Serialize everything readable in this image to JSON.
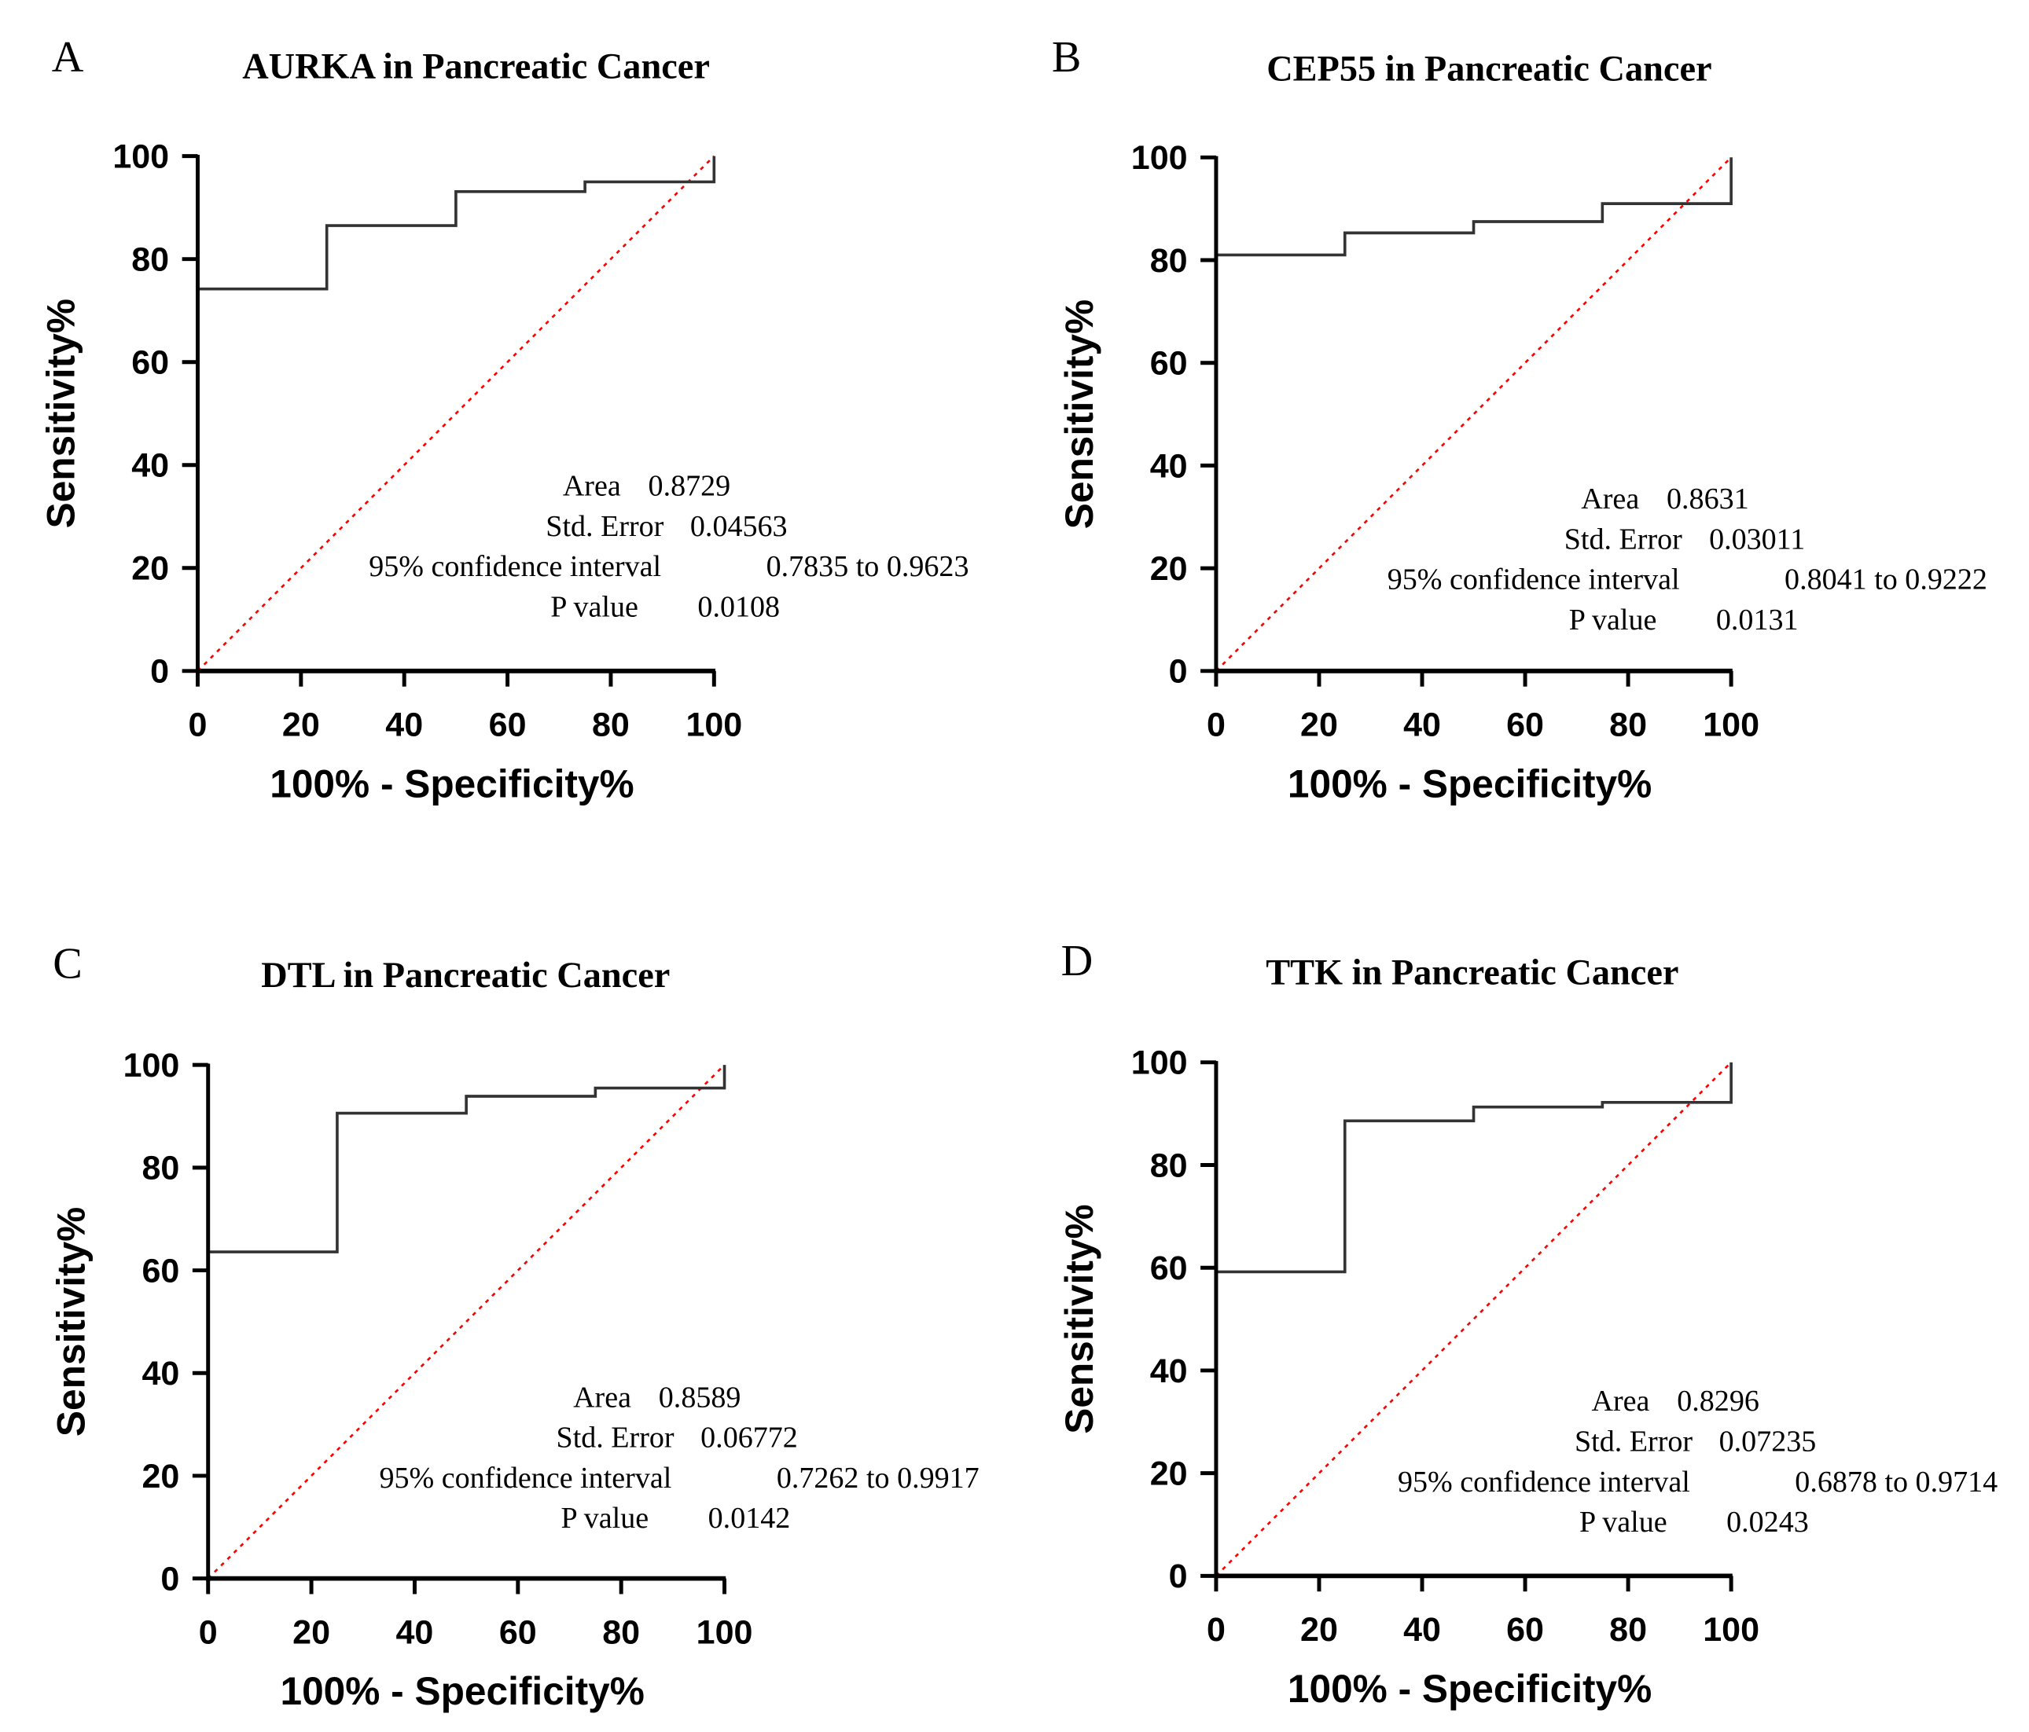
{
  "chart_data": [
    {
      "type": "line",
      "panel_letter": "A",
      "title": "AURKA in Pancreatic Cancer",
      "xlabel": "100% - Specificity%",
      "ylabel": "Sensitivity%",
      "xlim": [
        0,
        100
      ],
      "ylim": [
        0,
        100
      ],
      "xticks": [
        "0",
        "20",
        "40",
        "60",
        "80",
        "100"
      ],
      "yticks": [
        "0",
        "20",
        "40",
        "60",
        "80",
        "100"
      ],
      "roc": {
        "x": [
          0,
          25,
          50,
          75,
          100
        ],
        "y": [
          74.2,
          86.5,
          93.1,
          95.0,
          100
        ]
      },
      "reference_line": {
        "x": [
          0,
          100
        ],
        "y": [
          0,
          100
        ],
        "color": "#ff0000"
      },
      "stats": {
        "area_label": "Area",
        "area": "0.8729",
        "se_label": "Std. Error",
        "se": "0.04563",
        "ci_label": "95% confidence interval",
        "ci": "0.7835 to 0.9623",
        "p_label": "P value",
        "p": "0.0108"
      }
    },
    {
      "type": "line",
      "panel_letter": "B",
      "title": "CEP55 in Pancreatic Cancer",
      "xlabel": "100% - Specificity%",
      "ylabel": "Sensitivity%",
      "xlim": [
        0,
        100
      ],
      "ylim": [
        0,
        100
      ],
      "xticks": [
        "0",
        "20",
        "40",
        "60",
        "80",
        "100"
      ],
      "yticks": [
        "0",
        "20",
        "40",
        "60",
        "80",
        "100"
      ],
      "roc": {
        "x": [
          0,
          25,
          50,
          75,
          100
        ],
        "y": [
          81.0,
          85.3,
          87.5,
          91.0,
          100
        ]
      },
      "reference_line": {
        "x": [
          0,
          100
        ],
        "y": [
          0,
          100
        ],
        "color": "#ff0000"
      },
      "stats": {
        "area_label": "Area",
        "area": "0.8631",
        "se_label": "Std. Error",
        "se": "0.03011",
        "ci_label": "95% confidence interval",
        "ci": "0.8041 to 0.9222",
        "p_label": "P value",
        "p": "0.0131"
      }
    },
    {
      "type": "line",
      "panel_letter": "C",
      "title": "DTL in Pancreatic Cancer",
      "xlabel": "100% - Specificity%",
      "ylabel": "Sensitivity%",
      "xlim": [
        0,
        100
      ],
      "ylim": [
        0,
        100
      ],
      "xticks": [
        "0",
        "20",
        "40",
        "60",
        "80",
        "100"
      ],
      "yticks": [
        "0",
        "20",
        "40",
        "60",
        "80",
        "100"
      ],
      "roc": {
        "x": [
          0,
          25,
          50,
          75,
          100
        ],
        "y": [
          63.6,
          90.6,
          93.9,
          95.5,
          100
        ]
      },
      "reference_line": {
        "x": [
          0,
          100
        ],
        "y": [
          0,
          100
        ],
        "color": "#ff0000"
      },
      "stats": {
        "area_label": "Area",
        "area": "0.8589",
        "se_label": "Std. Error",
        "se": "0.06772",
        "ci_label": "95% confidence interval",
        "ci": "0.7262 to 0.9917",
        "p_label": "P value",
        "p": "0.0142"
      }
    },
    {
      "type": "line",
      "panel_letter": "D",
      "title": "TTK in Pancreatic Cancer",
      "xlabel": "100% - Specificity%",
      "ylabel": "Sensitivity%",
      "xlim": [
        0,
        100
      ],
      "ylim": [
        0,
        100
      ],
      "xticks": [
        "0",
        "20",
        "40",
        "60",
        "80",
        "100"
      ],
      "yticks": [
        "0",
        "20",
        "40",
        "60",
        "80",
        "100"
      ],
      "roc": {
        "x": [
          0,
          25,
          50,
          75,
          100
        ],
        "y": [
          59.2,
          88.6,
          91.3,
          92.2,
          100
        ]
      },
      "reference_line": {
        "x": [
          0,
          100
        ],
        "y": [
          0,
          100
        ],
        "color": "#ff0000"
      },
      "stats": {
        "area_label": "Area",
        "area": "0.8296",
        "se_label": "Std. Error",
        "se": "0.07235",
        "ci_label": "95% confidence interval",
        "ci": "0.6878 to 0.9714",
        "p_label": "P value",
        "p": "0.0243"
      }
    }
  ]
}
